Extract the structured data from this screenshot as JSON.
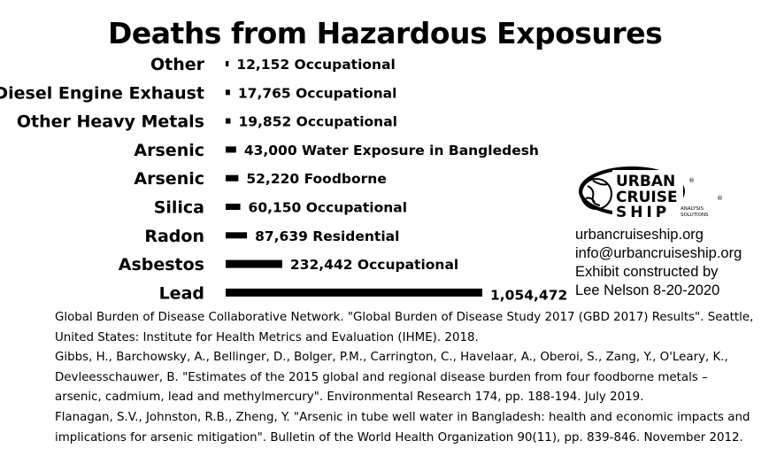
{
  "chart_data": {
    "type": "bar",
    "orientation": "horizontal",
    "title": "Deaths from Hazardous Exposures",
    "categories": [
      "Other",
      "Diesel Engine Exhaust",
      "Other Heavy Metals",
      "Arsenic",
      "Arsenic",
      "Silica",
      "Radon",
      "Asbestos",
      "Lead"
    ],
    "values": [
      12152,
      17765,
      19852,
      43000,
      52220,
      60150,
      87639,
      232442,
      1054472
    ],
    "data_labels": [
      "12,152 Occupational",
      "17,765 Occupational",
      "19,852 Occupational",
      "43,000 Water Exposure in Bangledesh",
      "52,220 Foodborne",
      "60,150 Occupational",
      "87,639 Residential",
      "232,442 Occupational",
      "1,054,472"
    ],
    "bar_color": "#000000",
    "grid": false,
    "legend": false
  },
  "logo": {
    "line1": "URBAN",
    "line2": "CRUISE",
    "line3": "SHIP",
    "sub1": "ANALYSIS",
    "sub2": "SOLUTIONS",
    "registered": "®"
  },
  "contact": {
    "website": "urbancruiseship.org",
    "email": "info@urbancruiseship.org",
    "credit_line1": "Exhibit constructed by",
    "credit_line2": "Lee Nelson 8-20-2020"
  },
  "references": [
    "Global Burden of Disease Collaborative Network. \"Global Burden of Disease Study 2017 (GBD 2017) Results\". Seattle, United States: Institute for Health Metrics and Evaluation (IHME). 2018.",
    "Gibbs, H., Barchowsky, A., Bellinger, D., Bolger, P.M., Carrington, C., Havelaar, A., Oberoi, S., Zang, Y., O'Leary, K., Devleesschauwer, B. \"Estimates of the 2015 global and regional disease burden from four foodborne metals – arsenic, cadmium, lead and methylmercury\". Environmental Research 174, pp. 188-194. July 2019.",
    "Flanagan, S.V., Johnston, R.B., Zheng, Y. \"Arsenic in tube well water in Bangladesh: health and economic impacts and implications for arsenic mitigation\". Bulletin of the World Health Organization 90(11), pp. 839-846. November 2012."
  ]
}
